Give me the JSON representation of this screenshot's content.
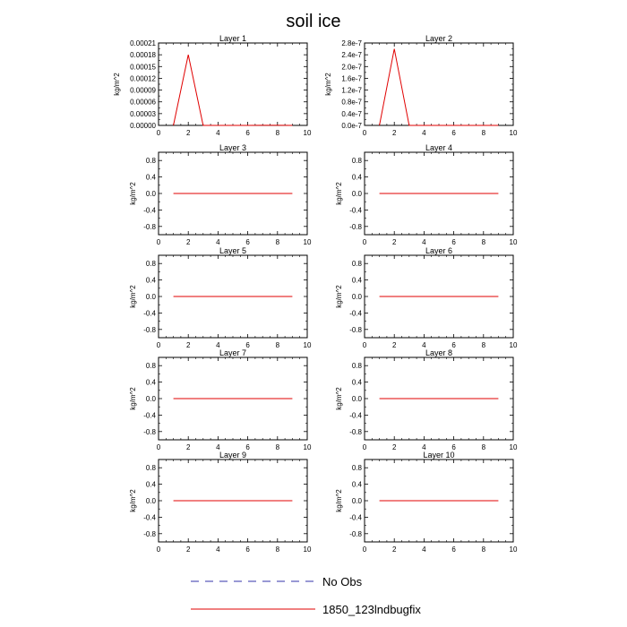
{
  "title": "soil ice",
  "chart_data": {
    "type": "line",
    "title": "soil ice",
    "xlim": [
      0,
      10
    ],
    "x_ticks": [
      0,
      2,
      4,
      6,
      8,
      10
    ],
    "x": [
      1,
      2,
      3,
      4,
      5,
      6,
      7,
      8,
      9
    ],
    "series_names": [
      "No Obs",
      "1850_123lndbugfix"
    ],
    "series_colors": [
      "#3333aa",
      "#e00000"
    ],
    "panels": [
      {
        "title": "Layer 1",
        "ylabel": "kg/m^2",
        "ylim": [
          0,
          0.00021
        ],
        "y_tick_labels": [
          "0.00000",
          "0.00003",
          "0.00006",
          "0.00009",
          "0.00012",
          "0.00015",
          "0.00018",
          "0.00021"
        ],
        "y_tick_values": [
          0,
          3e-05,
          6e-05,
          9e-05,
          0.00012,
          0.00015,
          0.00018,
          0.00021
        ],
        "values": [
          0,
          0.00018,
          0,
          0,
          0,
          0,
          2e-07,
          3e-07,
          0
        ]
      },
      {
        "title": "Layer 2",
        "ylabel": "kg/m^2",
        "ylim": [
          0,
          2.8e-07
        ],
        "y_tick_labels": [
          "0.0e-7",
          "0.4e-7",
          "0.8e-7",
          "1.2e-7",
          "1.6e-7",
          "2.0e-7",
          "2.4e-7",
          "2.8e-7"
        ],
        "y_tick_values": [
          0,
          4e-08,
          8e-08,
          1.2e-07,
          1.6e-07,
          2e-07,
          2.4e-07,
          2.8e-07
        ],
        "values": [
          0,
          2.6e-07,
          0,
          0,
          0,
          0,
          0,
          0,
          0
        ]
      },
      {
        "title": "Layer 3",
        "ylabel": "kg/m^2",
        "ylim": [
          -1,
          1
        ],
        "y_tick_labels": [
          "-0.8",
          "-0.4",
          "0.0",
          "0.4",
          "0.8"
        ],
        "y_tick_values": [
          -0.8,
          -0.4,
          0,
          0.4,
          0.8
        ],
        "values": [
          0,
          0,
          0,
          0,
          0,
          0,
          0,
          0,
          0
        ]
      },
      {
        "title": "Layer 4",
        "ylabel": "kg/m^2",
        "ylim": [
          -1,
          1
        ],
        "y_tick_labels": [
          "-0.8",
          "-0.4",
          "0.0",
          "0.4",
          "0.8"
        ],
        "y_tick_values": [
          -0.8,
          -0.4,
          0,
          0.4,
          0.8
        ],
        "values": [
          0,
          0,
          0,
          0,
          0,
          0,
          0,
          0,
          0
        ]
      },
      {
        "title": "Layer 5",
        "ylabel": "kg/m^2",
        "ylim": [
          -1,
          1
        ],
        "y_tick_labels": [
          "-0.8",
          "-0.4",
          "0.0",
          "0.4",
          "0.8"
        ],
        "y_tick_values": [
          -0.8,
          -0.4,
          0,
          0.4,
          0.8
        ],
        "values": [
          0,
          0,
          0,
          0,
          0,
          0,
          0,
          0,
          0
        ]
      },
      {
        "title": "Layer 6",
        "ylabel": "kg/m^2",
        "ylim": [
          -1,
          1
        ],
        "y_tick_labels": [
          "-0.8",
          "-0.4",
          "0.0",
          "0.4",
          "0.8"
        ],
        "y_tick_values": [
          -0.8,
          -0.4,
          0,
          0.4,
          0.8
        ],
        "values": [
          0,
          0,
          0,
          0,
          0,
          0,
          0,
          0,
          0
        ]
      },
      {
        "title": "Layer 7",
        "ylabel": "kg/m^2",
        "ylim": [
          -1,
          1
        ],
        "y_tick_labels": [
          "-0.8",
          "-0.4",
          "0.0",
          "0.4",
          "0.8"
        ],
        "y_tick_values": [
          -0.8,
          -0.4,
          0,
          0.4,
          0.8
        ],
        "values": [
          0,
          0,
          0,
          0,
          0,
          0,
          0,
          0,
          0
        ]
      },
      {
        "title": "Layer 8",
        "ylabel": "kg/m^2",
        "ylim": [
          -1,
          1
        ],
        "y_tick_labels": [
          "-0.8",
          "-0.4",
          "0.0",
          "0.4",
          "0.8"
        ],
        "y_tick_values": [
          -0.8,
          -0.4,
          0,
          0.4,
          0.8
        ],
        "values": [
          0,
          0,
          0,
          0,
          0,
          0,
          0,
          0,
          0
        ]
      },
      {
        "title": "Layer 9",
        "ylabel": "kg/m^2",
        "ylim": [
          -1,
          1
        ],
        "y_tick_labels": [
          "-0.8",
          "-0.4",
          "0.0",
          "0.4",
          "0.8"
        ],
        "y_tick_values": [
          -0.8,
          -0.4,
          0,
          0.4,
          0.8
        ],
        "values": [
          0,
          0,
          0,
          0,
          0,
          0,
          0,
          0,
          0
        ]
      },
      {
        "title": "Layer 10",
        "ylabel": "kg/m^2",
        "ylim": [
          -1,
          1
        ],
        "y_tick_labels": [
          "-0.8",
          "-0.4",
          "0.0",
          "0.4",
          "0.8"
        ],
        "y_tick_values": [
          -0.8,
          -0.4,
          0,
          0.4,
          0.8
        ],
        "values": [
          0,
          0,
          0,
          0,
          0,
          0,
          0,
          0,
          0
        ]
      }
    ]
  },
  "legend": {
    "items": [
      {
        "label": "No Obs",
        "color": "#3333aa",
        "style": "dashed"
      },
      {
        "label": "1850_123lndbugfix",
        "color": "#e00000",
        "style": "solid"
      }
    ]
  }
}
